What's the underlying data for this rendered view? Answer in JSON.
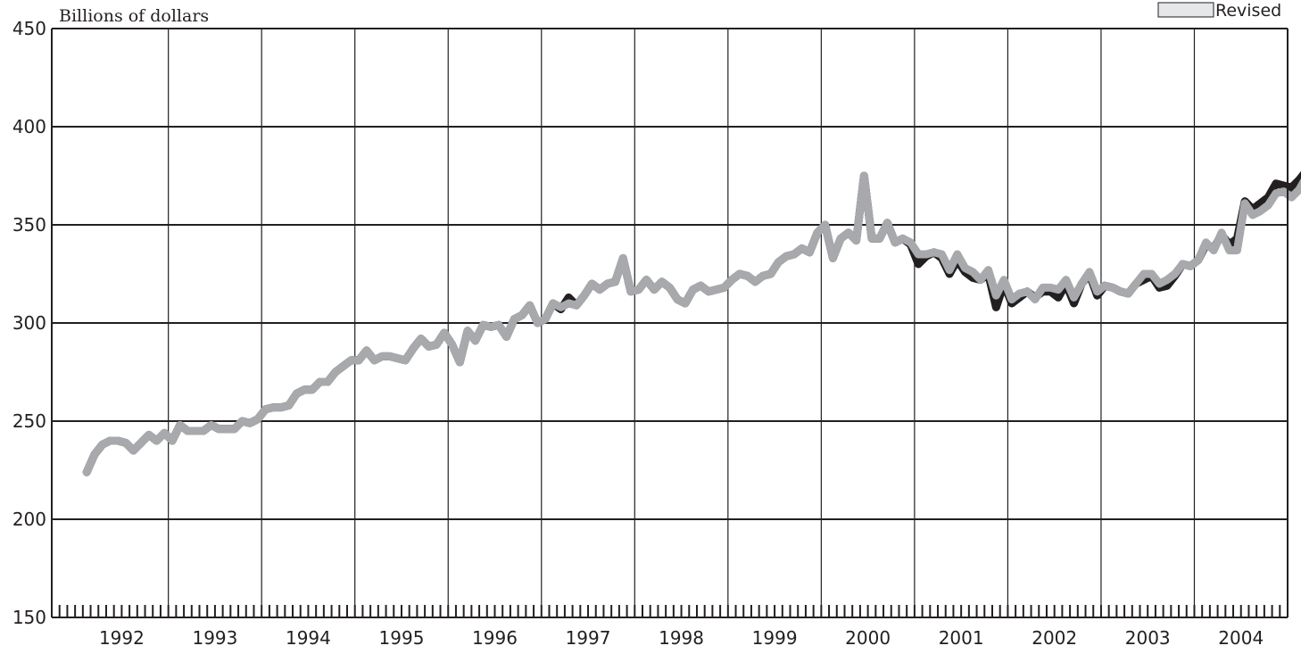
{
  "chart_data": {
    "type": "line",
    "title": "",
    "ylabel": "Billions of dollars",
    "xlabel": "",
    "ylim": [
      150,
      450
    ],
    "yticks": [
      150,
      200,
      250,
      300,
      350,
      400,
      450
    ],
    "xlim": [
      1991.708,
      2004.958
    ],
    "x_tick_labels": [
      "1992",
      "1993",
      "1994",
      "1995",
      "1996",
      "1997",
      "1998",
      "1999",
      "2000",
      "2001",
      "2002",
      "2003",
      "2004"
    ],
    "grid": true,
    "legend_position": "top-right",
    "colors": {
      "revised": "#a7a9ac",
      "original": "#231f20",
      "axis": "#231f20"
    },
    "series": [
      {
        "key": "revised",
        "name": "Revised",
        "x_start": 1992.083,
        "step_months": 1,
        "values": [
          224,
          233,
          238,
          240,
          240,
          239,
          235,
          239,
          243,
          240,
          244,
          240,
          248,
          245,
          245,
          245,
          248,
          246,
          246,
          246,
          250,
          249,
          251,
          256,
          257,
          257,
          258,
          264,
          266,
          266,
          270,
          270,
          275,
          278,
          281,
          281,
          286,
          281,
          283,
          283,
          282,
          281,
          287,
          292,
          288,
          289,
          295,
          289,
          280,
          296,
          291,
          299,
          298,
          299,
          293,
          302,
          304,
          309,
          300,
          302,
          310,
          308,
          310,
          309,
          314,
          320,
          317,
          320,
          321,
          333,
          316,
          317,
          322,
          317,
          321,
          318,
          312,
          310,
          317,
          319,
          316,
          317,
          318,
          322,
          325,
          324,
          321,
          324,
          325,
          331,
          334,
          335,
          338,
          336,
          346,
          350,
          333,
          343,
          346,
          342,
          375,
          343,
          343,
          351,
          341,
          343,
          341,
          335,
          335,
          336,
          335,
          327,
          335,
          328,
          326,
          322,
          327,
          314,
          322,
          312,
          315,
          316,
          312,
          318,
          318,
          317,
          322,
          313,
          320,
          326,
          316,
          319,
          318,
          316,
          315,
          320,
          325,
          325,
          320,
          322,
          325,
          330,
          329,
          332,
          341,
          337,
          346,
          337,
          337,
          361,
          355,
          357,
          360,
          366,
          367,
          364,
          368,
          375,
          376
        ]
      },
      {
        "key": "original",
        "name": "",
        "x_start": 1992.083,
        "step_months": 1,
        "values": [
          224,
          233,
          238,
          240,
          240,
          239,
          235,
          239,
          243,
          240,
          244,
          240,
          248,
          245,
          245,
          245,
          248,
          246,
          246,
          246,
          250,
          249,
          251,
          256,
          257,
          257,
          258,
          264,
          266,
          266,
          270,
          270,
          275,
          278,
          281,
          281,
          286,
          281,
          283,
          283,
          282,
          281,
          287,
          292,
          288,
          289,
          295,
          289,
          280,
          296,
          291,
          299,
          298,
          299,
          293,
          302,
          304,
          309,
          300,
          302,
          310,
          307,
          313,
          309,
          314,
          320,
          317,
          320,
          321,
          333,
          316,
          317,
          322,
          317,
          321,
          318,
          312,
          310,
          317,
          319,
          316,
          317,
          318,
          322,
          325,
          324,
          321,
          324,
          325,
          331,
          334,
          335,
          338,
          336,
          346,
          350,
          333,
          343,
          346,
          342,
          375,
          343,
          343,
          351,
          341,
          343,
          340,
          330,
          334,
          336,
          333,
          325,
          332,
          326,
          323,
          322,
          325,
          308,
          320,
          310,
          313,
          316,
          313,
          316,
          316,
          313,
          320,
          310,
          320,
          325,
          314,
          319,
          318,
          316,
          315,
          320,
          322,
          324,
          318,
          319,
          324,
          330,
          329,
          332,
          340,
          338,
          345,
          340,
          343,
          362,
          358,
          361,
          364,
          371,
          370,
          369,
          373,
          378,
          380
        ]
      }
    ]
  }
}
